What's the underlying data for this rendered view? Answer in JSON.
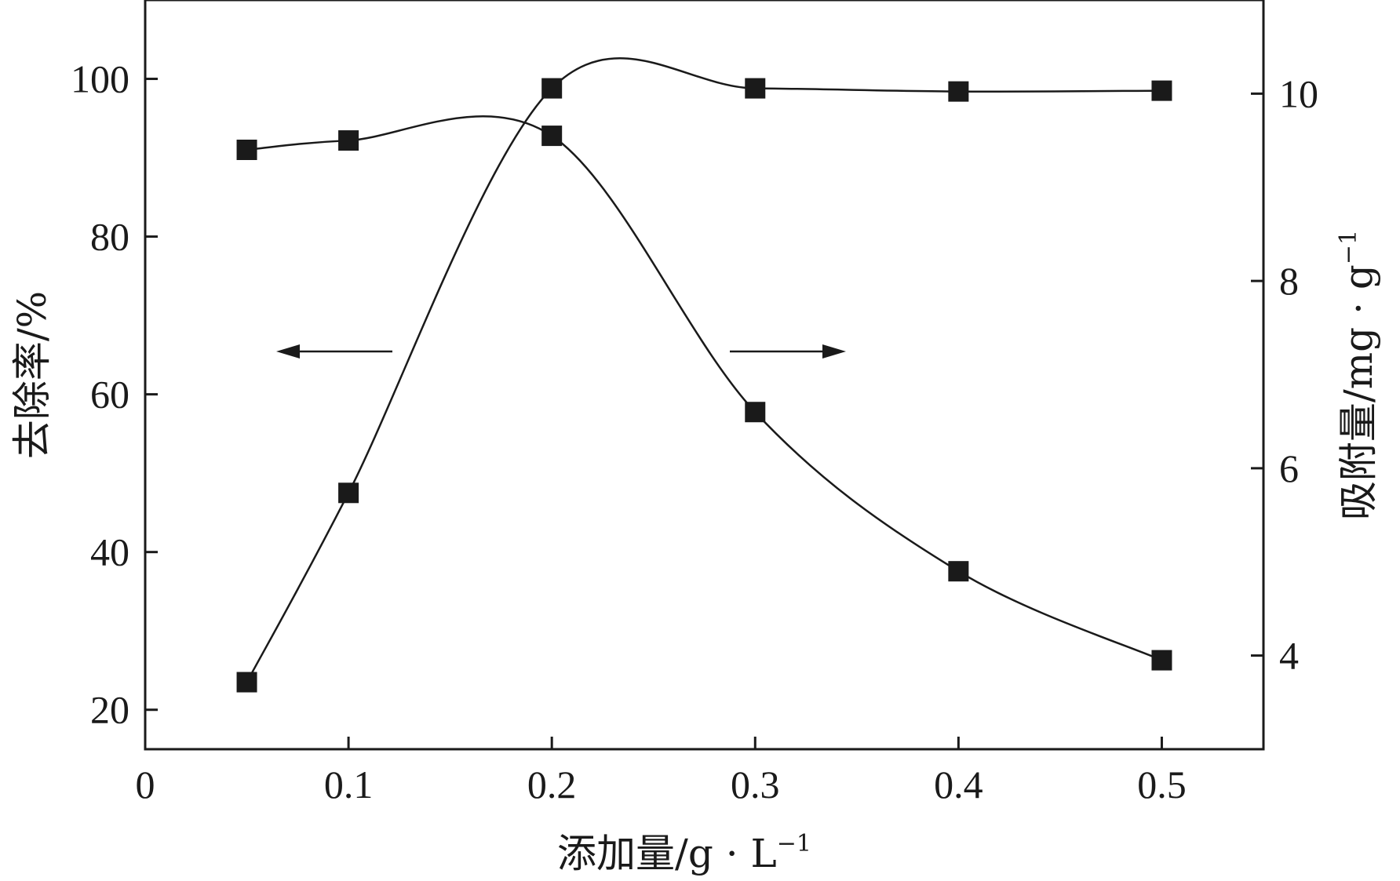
{
  "chart_data": {
    "type": "line",
    "title": "",
    "xlabel": "添加量/g·L⁻¹",
    "xlabel_main": "添加量/g · L",
    "xlabel_sup": "−1",
    "ylabel_left": "去除率/%",
    "ylabel_right": "吸附量/mg · g",
    "ylabel_right_sup": "−1",
    "xlim": [
      0,
      0.55
    ],
    "ylim_left": [
      15,
      110
    ],
    "ylim_right": [
      3,
      11
    ],
    "x_ticks": [
      0,
      0.1,
      0.2,
      0.3,
      0.4,
      0.5
    ],
    "x_tick_labels": [
      "0",
      "0.1",
      "0.2",
      "0.3",
      "0.4",
      "0.5"
    ],
    "y_left_ticks": [
      20,
      40,
      60,
      80,
      100
    ],
    "y_left_tick_labels": [
      "20",
      "40",
      "60",
      "80",
      "100"
    ],
    "y_right_ticks": [
      4,
      6,
      8,
      10
    ],
    "y_right_tick_labels": [
      "4",
      "6",
      "8",
      "10"
    ],
    "grid": false,
    "legend": "none",
    "annotations": [
      {
        "type": "arrow",
        "direction": "left",
        "meaning": "series uses left axis"
      },
      {
        "type": "arrow",
        "direction": "right",
        "meaning": "series uses right axis"
      }
    ],
    "series": [
      {
        "axis": "left",
        "marker": "square",
        "color": "#1a1a1a",
        "x": [
          0.05,
          0.1,
          0.2,
          0.3,
          0.4,
          0.5
        ],
        "y": [
          23.5,
          47.5,
          98.8,
          98.8,
          98.4,
          98.5
        ]
      },
      {
        "axis": "right",
        "marker": "square",
        "color": "#1a1a1a",
        "x": [
          0.05,
          0.1,
          0.2,
          0.3,
          0.4,
          0.5
        ],
        "y": [
          9.4,
          9.5,
          9.55,
          6.6,
          4.9,
          3.95
        ]
      }
    ]
  }
}
